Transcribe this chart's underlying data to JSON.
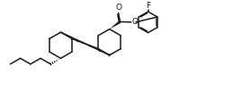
{
  "bg_color": "#ffffff",
  "line_color": "#1a1a1a",
  "line_width": 1.1,
  "fig_width": 2.59,
  "fig_height": 1.01,
  "dpi": 100,
  "F_label": "F",
  "O_label": "O",
  "carbonyl_O_label": "O"
}
